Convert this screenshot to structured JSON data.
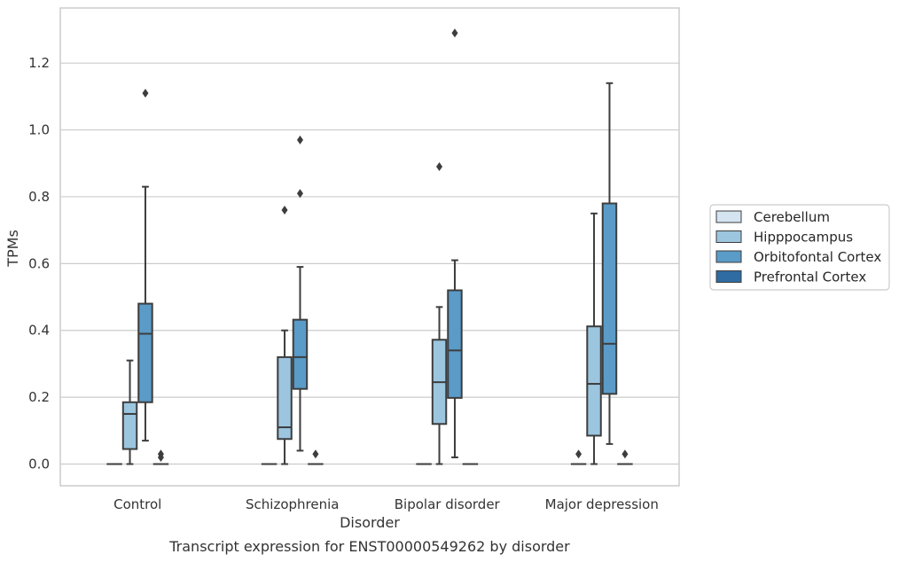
{
  "chart_data": {
    "type": "boxplot",
    "caption": "Transcript expression for ENST00000549262 by disorder",
    "xlabel": "Disorder",
    "ylabel": "TPMs",
    "ylim": [
      -0.065,
      1.365
    ],
    "yticks": [
      "0.0",
      "0.2",
      "0.4",
      "0.6",
      "0.8",
      "1.0",
      "1.2"
    ],
    "categories": [
      "Control",
      "Schizophrenia",
      "Bipolar disorder",
      "Major depression"
    ],
    "grid": "horizontal",
    "legend_position": "right",
    "series": [
      {
        "name": "Cerebellum",
        "color": "#d4e4f1",
        "boxes": [
          {
            "min": 0,
            "q1": 0,
            "median": 0,
            "q3": 0,
            "max": 0,
            "outliers": []
          },
          {
            "min": 0,
            "q1": 0,
            "median": 0,
            "q3": 0,
            "max": 0,
            "outliers": []
          },
          {
            "min": 0,
            "q1": 0,
            "median": 0,
            "q3": 0,
            "max": 0,
            "outliers": []
          },
          {
            "min": 0,
            "q1": 0,
            "median": 0,
            "q3": 0,
            "max": 0,
            "outliers": [
              0.03
            ]
          }
        ]
      },
      {
        "name": "Hipppocampus",
        "color": "#9cc5df",
        "boxes": [
          {
            "min": 0,
            "q1": 0.045,
            "median": 0.15,
            "q3": 0.185,
            "max": 0.31,
            "outliers": []
          },
          {
            "min": 0,
            "q1": 0.075,
            "median": 0.11,
            "q3": 0.32,
            "max": 0.4,
            "outliers": [
              0.76
            ]
          },
          {
            "min": 0,
            "q1": 0.12,
            "median": 0.245,
            "q3": 0.372,
            "max": 0.47,
            "outliers": [
              0.89
            ]
          },
          {
            "min": 0,
            "q1": 0.085,
            "median": 0.24,
            "q3": 0.412,
            "max": 0.75,
            "outliers": []
          }
        ]
      },
      {
        "name": "Orbitofontal Cortex",
        "color": "#5a9bc8",
        "boxes": [
          {
            "min": 0.07,
            "q1": 0.185,
            "median": 0.39,
            "q3": 0.48,
            "max": 0.83,
            "outliers": [
              1.11
            ]
          },
          {
            "min": 0.04,
            "q1": 0.225,
            "median": 0.32,
            "q3": 0.432,
            "max": 0.59,
            "outliers": [
              0.81,
              0.97
            ]
          },
          {
            "min": 0.02,
            "q1": 0.198,
            "median": 0.34,
            "q3": 0.52,
            "max": 0.61,
            "outliers": [
              1.29
            ]
          },
          {
            "min": 0.06,
            "q1": 0.21,
            "median": 0.36,
            "q3": 0.78,
            "max": 1.14,
            "outliers": []
          }
        ]
      },
      {
        "name": "Prefrontal Cortex",
        "color": "#2e6ca3",
        "boxes": [
          {
            "min": 0,
            "q1": 0,
            "median": 0,
            "q3": 0,
            "max": 0,
            "outliers": [
              0.02,
              0.03
            ]
          },
          {
            "min": 0,
            "q1": 0,
            "median": 0,
            "q3": 0,
            "max": 0,
            "outliers": [
              0.03
            ]
          },
          {
            "min": 0,
            "q1": 0,
            "median": 0,
            "q3": 0,
            "max": 0,
            "outliers": []
          },
          {
            "min": 0,
            "q1": 0,
            "median": 0,
            "q3": 0,
            "max": 0,
            "outliers": [
              0.03
            ]
          }
        ]
      }
    ]
  }
}
